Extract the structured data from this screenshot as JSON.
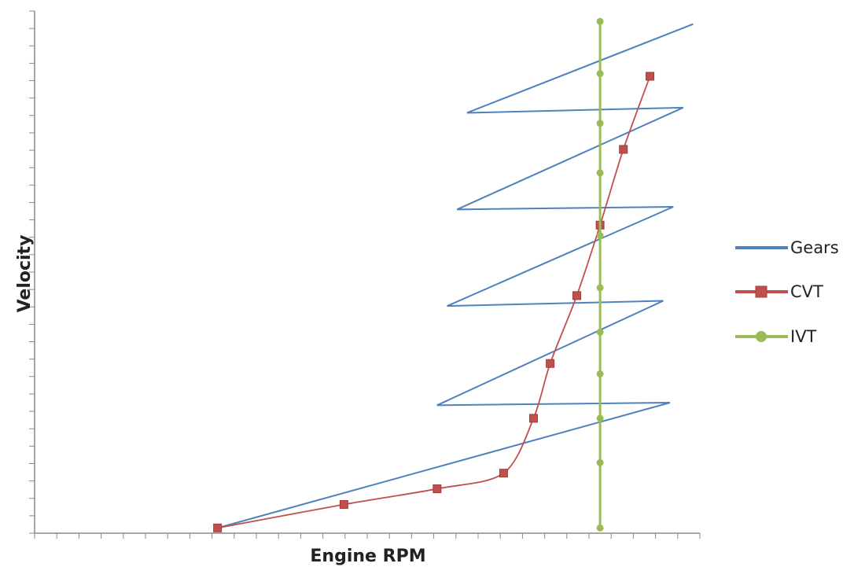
{
  "chart_data": {
    "type": "line",
    "title": "",
    "xlabel": "Engine RPM",
    "ylabel": "Velocity",
    "xlim": [
      0,
      100
    ],
    "ylim": [
      0,
      100
    ],
    "grid": false,
    "legend_position": "right",
    "series": [
      {
        "name": "Gears",
        "color": "#4F81BD",
        "marker": "none",
        "points": [
          [
            27.5,
            1.0
          ],
          [
            95.5,
            25.0
          ],
          [
            60.5,
            24.5
          ],
          [
            94.5,
            44.5
          ],
          [
            62,
            43.5
          ],
          [
            96,
            62.5
          ],
          [
            63.5,
            62.0
          ],
          [
            97.5,
            81.5
          ],
          [
            65,
            80.5
          ],
          [
            99,
            97.5
          ]
        ]
      },
      {
        "name": "CVT",
        "color": "#C0504D",
        "marker": "square",
        "points": [
          [
            27.5,
            1.0
          ],
          [
            46.5,
            5.5
          ],
          [
            60.5,
            8.5
          ],
          [
            70.5,
            11.5
          ],
          [
            75,
            22.0
          ],
          [
            77.5,
            32.5
          ],
          [
            81.5,
            45.5
          ],
          [
            85,
            59.0
          ],
          [
            88.5,
            73.5
          ],
          [
            92.5,
            87.5
          ]
        ]
      },
      {
        "name": "IVT",
        "color": "#9BBB59",
        "marker": "circle",
        "points": [
          [
            85,
            1.0
          ],
          [
            85,
            13.5
          ],
          [
            85,
            22.0
          ],
          [
            85,
            30.5
          ],
          [
            85,
            38.5
          ],
          [
            85,
            47.0
          ],
          [
            85,
            57.0
          ],
          [
            85,
            69.0
          ],
          [
            85,
            78.5
          ],
          [
            85,
            88.0
          ],
          [
            85,
            98.0
          ]
        ]
      }
    ]
  }
}
